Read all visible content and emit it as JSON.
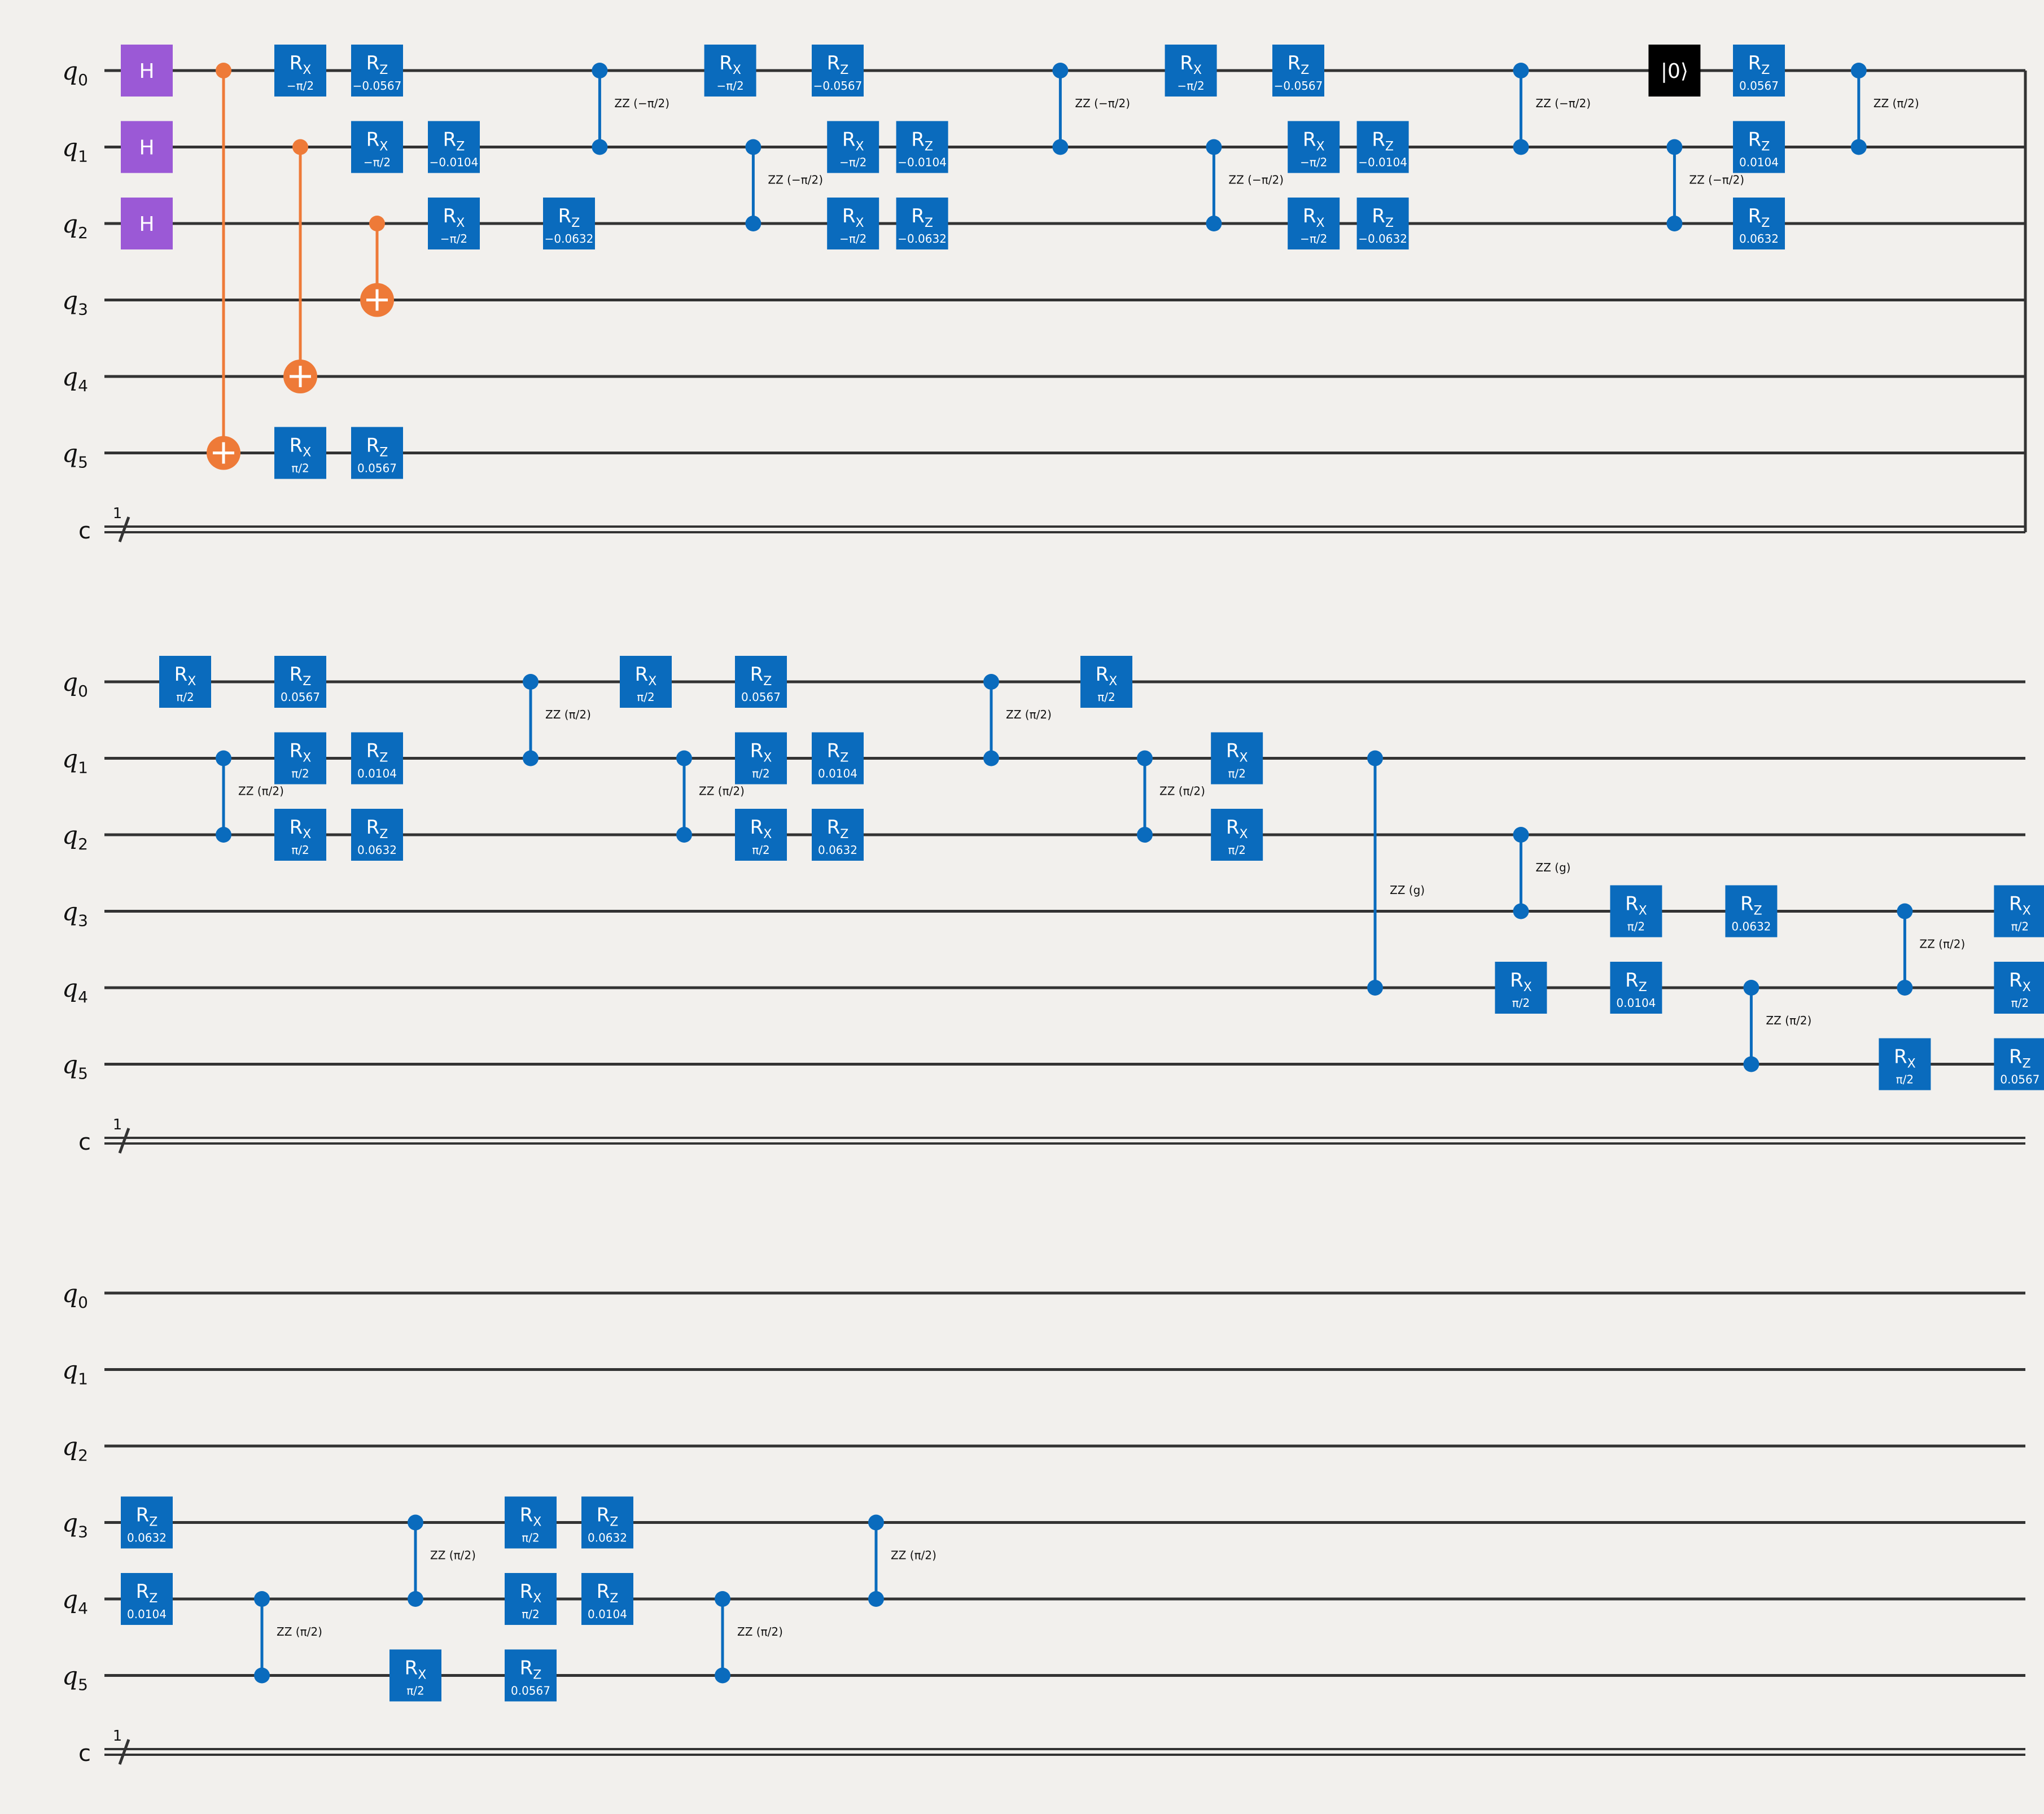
{
  "colors": {
    "background": "#f2f0ed",
    "wire": "#333333",
    "gate_blue": "#0a6bbd",
    "gate_h": "#9b59d6",
    "gate_cx": "#ee7a38",
    "gate_reset": "#000000",
    "gate_text": "#ffffff"
  },
  "wire_labels": [
    {
      "base": "q",
      "sub": "0"
    },
    {
      "base": "q",
      "sub": "1"
    },
    {
      "base": "q",
      "sub": "2"
    },
    {
      "base": "q",
      "sub": "3"
    },
    {
      "base": "q",
      "sub": "4"
    },
    {
      "base": "q",
      "sub": "5"
    }
  ],
  "classical_label": "c",
  "classical_width": "1",
  "gate_names": {
    "h": "H",
    "rx": {
      "base": "R",
      "sub": "X"
    },
    "rz": {
      "base": "R",
      "sub": "Z"
    },
    "reset": "|0⟩"
  },
  "panels": [
    {
      "gates": [
        {
          "t": "h",
          "q": 0,
          "col": 0
        },
        {
          "t": "h",
          "q": 1,
          "col": 0
        },
        {
          "t": "h",
          "q": 2,
          "col": 0
        },
        {
          "t": "cx",
          "c": 0,
          "tq": 5,
          "col": 1
        },
        {
          "t": "rx",
          "q": 5,
          "p": "π/2",
          "col": 2
        },
        {
          "t": "rz",
          "q": 5,
          "p": "0.0567",
          "col": 3
        },
        {
          "t": "rx",
          "q": 0,
          "p": "−π/2",
          "col": 2
        },
        {
          "t": "rz",
          "q": 0,
          "p": "−0.0567",
          "col": 3
        },
        {
          "t": "cx",
          "c": 1,
          "tq": 4,
          "col": 2
        },
        {
          "t": "rx",
          "q": 1,
          "p": "−π/2",
          "col": 3
        },
        {
          "t": "rz",
          "q": 1,
          "p": "−0.0104",
          "col": 4
        },
        {
          "t": "cx",
          "c": 2,
          "tq": 3,
          "col": 3
        },
        {
          "t": "rx",
          "q": 2,
          "p": "−π/2",
          "col": 4
        },
        {
          "t": "rz",
          "q": 2,
          "p": "−0.0632",
          "col": 5.5
        },
        {
          "t": "zz",
          "a": 0,
          "b": 1,
          "p": "ZZ (−π/2)",
          "col": 5.9
        },
        {
          "t": "rx",
          "q": 0,
          "p": "−π/2",
          "col": 7.6
        },
        {
          "t": "rz",
          "q": 0,
          "p": "−0.0567",
          "col": 9
        },
        {
          "t": "zz",
          "a": 1,
          "b": 2,
          "p": "ZZ (−π/2)",
          "col": 7.9
        },
        {
          "t": "rx",
          "q": 1,
          "p": "−π/2",
          "col": 9.2
        },
        {
          "t": "rz",
          "q": 1,
          "p": "−0.0104",
          "col": 10.1
        },
        {
          "t": "rx",
          "q": 2,
          "p": "−π/2",
          "col": 9.2
        },
        {
          "t": "rz",
          "q": 2,
          "p": "−0.0632",
          "col": 10.1
        },
        {
          "t": "zz",
          "a": 0,
          "b": 1,
          "p": "ZZ (−π/2)",
          "col": 11.9
        },
        {
          "t": "rx",
          "q": 0,
          "p": "−π/2",
          "col": 13.6
        },
        {
          "t": "rz",
          "q": 0,
          "p": "−0.0567",
          "col": 15
        },
        {
          "t": "zz",
          "a": 1,
          "b": 2,
          "p": "ZZ (−π/2)",
          "col": 13.9
        },
        {
          "t": "rx",
          "q": 1,
          "p": "−π/2",
          "col": 15.2
        },
        {
          "t": "rz",
          "q": 1,
          "p": "−0.0104",
          "col": 16.1
        },
        {
          "t": "rx",
          "q": 2,
          "p": "−π/2",
          "col": 15.2
        },
        {
          "t": "rz",
          "q": 2,
          "p": "−0.0632",
          "col": 16.1
        },
        {
          "t": "zz",
          "a": 0,
          "b": 1,
          "p": "ZZ (−π/2)",
          "col": 17.9
        },
        {
          "t": "reset",
          "q": 0,
          "col": 19.9
        },
        {
          "t": "rz",
          "q": 0,
          "p": "0.0567",
          "col": 21
        },
        {
          "t": "zz",
          "a": 1,
          "b": 2,
          "p": "ZZ (−π/2)",
          "col": 19.9
        },
        {
          "t": "rz",
          "q": 1,
          "p": "0.0104",
          "col": 21
        },
        {
          "t": "rz",
          "q": 2,
          "p": "0.0632",
          "col": 21
        },
        {
          "t": "zz",
          "a": 0,
          "b": 1,
          "p": "ZZ (π/2)",
          "col": 22.3
        }
      ]
    },
    {
      "gates": [
        {
          "t": "rx",
          "q": 0,
          "p": "π/2",
          "col": 0.5
        },
        {
          "t": "rz",
          "q": 0,
          "p": "0.0567",
          "col": 2
        },
        {
          "t": "zz",
          "a": 1,
          "b": 2,
          "p": "ZZ (π/2)",
          "col": 1
        },
        {
          "t": "rx",
          "q": 1,
          "p": "π/2",
          "col": 2
        },
        {
          "t": "rz",
          "q": 1,
          "p": "0.0104",
          "col": 3
        },
        {
          "t": "rx",
          "q": 2,
          "p": "π/2",
          "col": 2
        },
        {
          "t": "rz",
          "q": 2,
          "p": "0.0632",
          "col": 3
        },
        {
          "t": "zz",
          "a": 0,
          "b": 1,
          "p": "ZZ (π/2)",
          "col": 5
        },
        {
          "t": "rx",
          "q": 0,
          "p": "π/2",
          "col": 6.5
        },
        {
          "t": "rz",
          "q": 0,
          "p": "0.0567",
          "col": 8
        },
        {
          "t": "zz",
          "a": 1,
          "b": 2,
          "p": "ZZ (π/2)",
          "col": 7
        },
        {
          "t": "rx",
          "q": 1,
          "p": "π/2",
          "col": 8
        },
        {
          "t": "rz",
          "q": 1,
          "p": "0.0104",
          "col": 9
        },
        {
          "t": "rx",
          "q": 2,
          "p": "π/2",
          "col": 8
        },
        {
          "t": "rz",
          "q": 2,
          "p": "0.0632",
          "col": 9
        },
        {
          "t": "zz",
          "a": 0,
          "b": 1,
          "p": "ZZ (π/2)",
          "col": 11
        },
        {
          "t": "rx",
          "q": 0,
          "p": "π/2",
          "col": 12.5
        },
        {
          "t": "zz",
          "a": 1,
          "b": 2,
          "p": "ZZ (π/2)",
          "col": 13
        },
        {
          "t": "rx",
          "q": 1,
          "p": "π/2",
          "col": 14.2
        },
        {
          "t": "rx",
          "q": 2,
          "p": "π/2",
          "col": 14.2
        },
        {
          "t": "zz",
          "a": 1,
          "b": 4,
          "p": "ZZ (g)",
          "col": 16
        },
        {
          "t": "zz",
          "a": 2,
          "b": 3,
          "p": "ZZ (g)",
          "col": 17.9
        },
        {
          "t": "rx",
          "q": 4,
          "p": "π/2",
          "col": 17.9
        },
        {
          "t": "rx",
          "q": 3,
          "p": "π/2",
          "col": 19.4
        },
        {
          "t": "rz",
          "q": 4,
          "p": "0.0104",
          "col": 19.4
        },
        {
          "t": "rz",
          "q": 3,
          "p": "0.0632",
          "col": 20.9
        },
        {
          "t": "zz",
          "a": 4,
          "b": 5,
          "p": "ZZ (π/2)",
          "col": 20.9
        },
        {
          "t": "zz",
          "a": 3,
          "b": 4,
          "p": "ZZ (π/2)",
          "col": 22.9
        },
        {
          "t": "rx",
          "q": 5,
          "p": "π/2",
          "col": 22.9
        },
        {
          "t": "rx",
          "q": 3,
          "p": "π/2",
          "col": 24.4
        },
        {
          "t": "rx",
          "q": 4,
          "p": "π/2",
          "col": 24.4
        },
        {
          "t": "rz",
          "q": 5,
          "p": "0.0567",
          "col": 24.4
        }
      ]
    },
    {
      "gates": [
        {
          "t": "rz",
          "q": 3,
          "p": "0.0632",
          "col": 0
        },
        {
          "t": "rz",
          "q": 4,
          "p": "0.0104",
          "col": 0
        },
        {
          "t": "zz",
          "a": 4,
          "b": 5,
          "p": "ZZ (π/2)",
          "col": 1.5
        },
        {
          "t": "zz",
          "a": 3,
          "b": 4,
          "p": "ZZ (π/2)",
          "col": 3.5
        },
        {
          "t": "rx",
          "q": 5,
          "p": "π/2",
          "col": 3.5
        },
        {
          "t": "rx",
          "q": 3,
          "p": "π/2",
          "col": 5
        },
        {
          "t": "rx",
          "q": 4,
          "p": "π/2",
          "col": 5
        },
        {
          "t": "rz",
          "q": 5,
          "p": "0.0567",
          "col": 5
        },
        {
          "t": "rz",
          "q": 3,
          "p": "0.0632",
          "col": 6
        },
        {
          "t": "rz",
          "q": 4,
          "p": "0.0104",
          "col": 6
        },
        {
          "t": "zz",
          "a": 4,
          "b": 5,
          "p": "ZZ (π/2)",
          "col": 7.5
        },
        {
          "t": "zz",
          "a": 3,
          "b": 4,
          "p": "ZZ (π/2)",
          "col": 9.5
        }
      ]
    }
  ]
}
